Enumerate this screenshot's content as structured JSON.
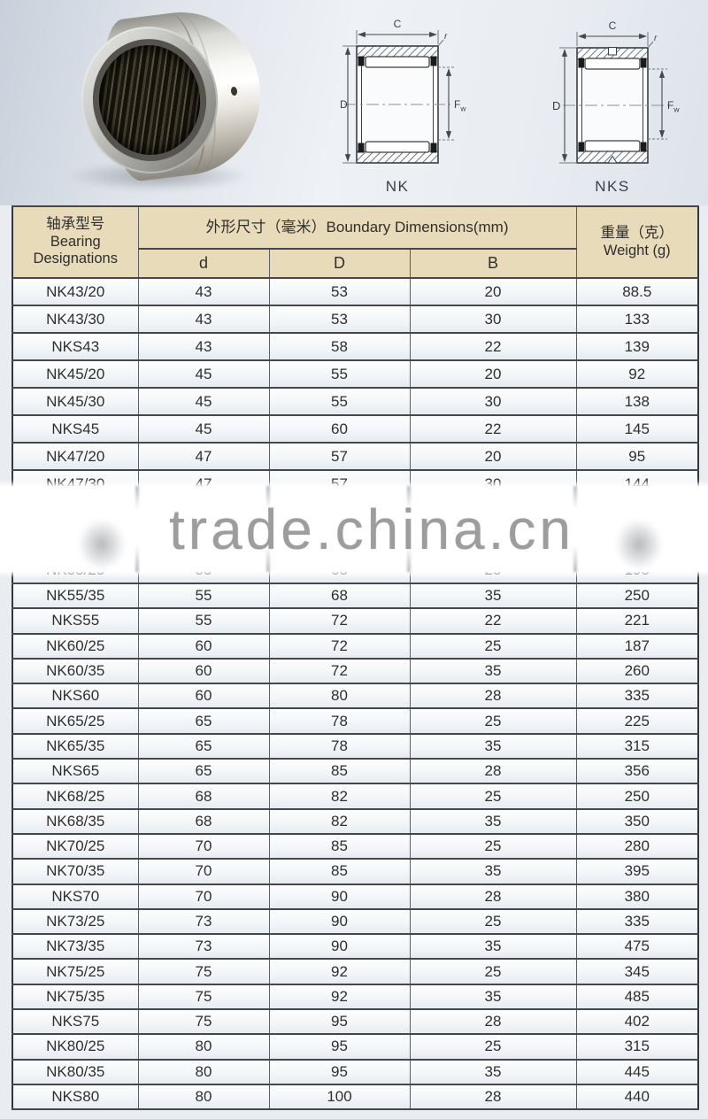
{
  "watermark": {
    "text": "trade.china.cn"
  },
  "diagrams": {
    "dim_c": "C",
    "dim_d": "D",
    "dim_r": "r",
    "fw_main": "F",
    "fw_sub": "w",
    "nk_caption": "NK",
    "nks_caption": "NKS"
  },
  "table": {
    "header": {
      "designation_zh": "轴承型号",
      "designation_en1": "Bearing",
      "designation_en2": "Designations",
      "dimensions": "外形尺寸（毫米）Boundary Dimensions(mm)",
      "sub_d": "d",
      "sub_D": "D",
      "sub_B": "B",
      "weight_zh": "重量（克）",
      "weight_en": "Weight (g)"
    },
    "rows_before_watermark": [
      {
        "model": "NK43/20",
        "d": "43",
        "D": "53",
        "B": "20",
        "weight": "88.5"
      },
      {
        "model": "NK43/30",
        "d": "43",
        "D": "53",
        "B": "30",
        "weight": "133"
      },
      {
        "model": "NKS43",
        "d": "43",
        "D": "58",
        "B": "22",
        "weight": "139"
      },
      {
        "model": "NK45/20",
        "d": "45",
        "D": "55",
        "B": "20",
        "weight": "92"
      },
      {
        "model": "NK45/30",
        "d": "45",
        "D": "55",
        "B": "30",
        "weight": "138"
      },
      {
        "model": "NKS45",
        "d": "45",
        "D": "60",
        "B": "22",
        "weight": "145"
      },
      {
        "model": "NK47/20",
        "d": "47",
        "D": "57",
        "B": "20",
        "weight": "95"
      },
      {
        "model": "NK47/30",
        "d": "47",
        "D": "57",
        "B": "30",
        "weight": "144"
      }
    ],
    "partial_row": {
      "model": "NK55/25",
      "d": "55",
      "D": "68",
      "B": "25",
      "weight": "195"
    },
    "rows_after_watermark": [
      {
        "model": "NK55/35",
        "d": "55",
        "D": "68",
        "B": "35",
        "weight": "250"
      },
      {
        "model": "NKS55",
        "d": "55",
        "D": "72",
        "B": "22",
        "weight": "221"
      },
      {
        "model": "NK60/25",
        "d": "60",
        "D": "72",
        "B": "25",
        "weight": "187"
      },
      {
        "model": "NK60/35",
        "d": "60",
        "D": "72",
        "B": "35",
        "weight": "260"
      },
      {
        "model": "NKS60",
        "d": "60",
        "D": "80",
        "B": "28",
        "weight": "335"
      },
      {
        "model": "NK65/25",
        "d": "65",
        "D": "78",
        "B": "25",
        "weight": "225"
      },
      {
        "model": "NK65/35",
        "d": "65",
        "D": "78",
        "B": "35",
        "weight": "315"
      },
      {
        "model": "NKS65",
        "d": "65",
        "D": "85",
        "B": "28",
        "weight": "356"
      },
      {
        "model": "NK68/25",
        "d": "68",
        "D": "82",
        "B": "25",
        "weight": "250"
      },
      {
        "model": "NK68/35",
        "d": "68",
        "D": "82",
        "B": "35",
        "weight": "350"
      },
      {
        "model": "NK70/25",
        "d": "70",
        "D": "85",
        "B": "25",
        "weight": "280"
      },
      {
        "model": "NK70/35",
        "d": "70",
        "D": "85",
        "B": "35",
        "weight": "395"
      },
      {
        "model": "NKS70",
        "d": "70",
        "D": "90",
        "B": "28",
        "weight": "380"
      },
      {
        "model": "NK73/25",
        "d": "73",
        "D": "90",
        "B": "25",
        "weight": "335"
      },
      {
        "model": "NK73/35",
        "d": "73",
        "D": "90",
        "B": "35",
        "weight": "475"
      },
      {
        "model": "NK75/25",
        "d": "75",
        "D": "92",
        "B": "25",
        "weight": "345"
      },
      {
        "model": "NK75/35",
        "d": "75",
        "D": "92",
        "B": "35",
        "weight": "485"
      },
      {
        "model": "NKS75",
        "d": "75",
        "D": "95",
        "B": "28",
        "weight": "402"
      },
      {
        "model": "NK80/25",
        "d": "80",
        "D": "95",
        "B": "25",
        "weight": "315"
      },
      {
        "model": "NK80/35",
        "d": "80",
        "D": "95",
        "B": "35",
        "weight": "445"
      },
      {
        "model": "NKS80",
        "d": "80",
        "D": "100",
        "B": "28",
        "weight": "440"
      }
    ]
  }
}
